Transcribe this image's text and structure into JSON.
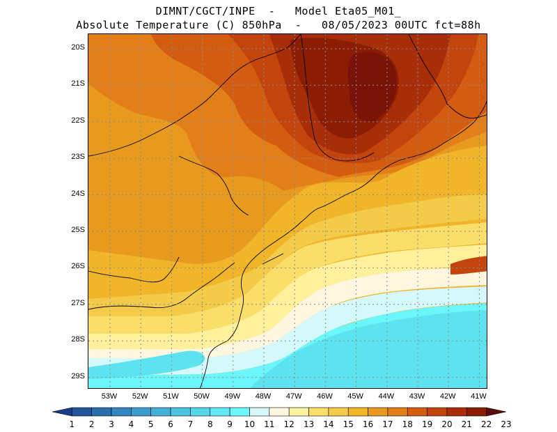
{
  "header": {
    "title_line1": "DIMNT/CGCT/INPE  -   Model Eta05_M01_",
    "title_line2": "Absolute Temperature (C) 850hPa  -   08/05/2023 00UTC fct=88h"
  },
  "map": {
    "lat_labels": [
      "20S",
      "21S",
      "22S",
      "23S",
      "24S",
      "25S",
      "26S",
      "27S",
      "28S",
      "29S"
    ],
    "lon_labels": [
      "53W",
      "52W",
      "51W",
      "50W",
      "49W",
      "48W",
      "47W",
      "46W",
      "45W",
      "44W",
      "43W",
      "42W",
      "41W"
    ],
    "gridlines": "dotted",
    "colors": {
      "c6": "#1fb5d5",
      "c7": "#47cfe7",
      "c8": "#5ce3ef",
      "c9": "#6af6fa",
      "c10": "#d5f8fb",
      "c11": "#fff6df",
      "c12": "#fff19c",
      "c13": "#f9df6a",
      "c14": "#f4ca49",
      "c15": "#f0b528",
      "c16": "#e89a1e",
      "c17": "#e27f18",
      "c18": "#d35c10",
      "c19": "#c3440c",
      "c20": "#a72e08",
      "c21": "#8c1d05",
      "c22": "#7a1408",
      "c23": "#5a0a0a"
    }
  },
  "colorbar": {
    "labels": [
      "1",
      "2",
      "3",
      "4",
      "5",
      "6",
      "7",
      "8",
      "9",
      "10",
      "11",
      "12",
      "13",
      "14",
      "15",
      "16",
      "17",
      "18",
      "19",
      "20",
      "21",
      "22",
      "23"
    ],
    "colors": [
      "#1c3a8c",
      "#24569e",
      "#2c6fb0",
      "#3384bf",
      "#3b9ccb",
      "#44b0d6",
      "#4cc4e0",
      "#55d6ea",
      "#62e8f2",
      "#6ff8fb",
      "#d9f8fa",
      "#fff7e0",
      "#fff29e",
      "#fbe06b",
      "#f4ca4a",
      "#f0b529",
      "#e89a1e",
      "#e27f18",
      "#d35c10",
      "#c3440c",
      "#a72e08",
      "#8c1d05",
      "#5a0a0a"
    ]
  }
}
